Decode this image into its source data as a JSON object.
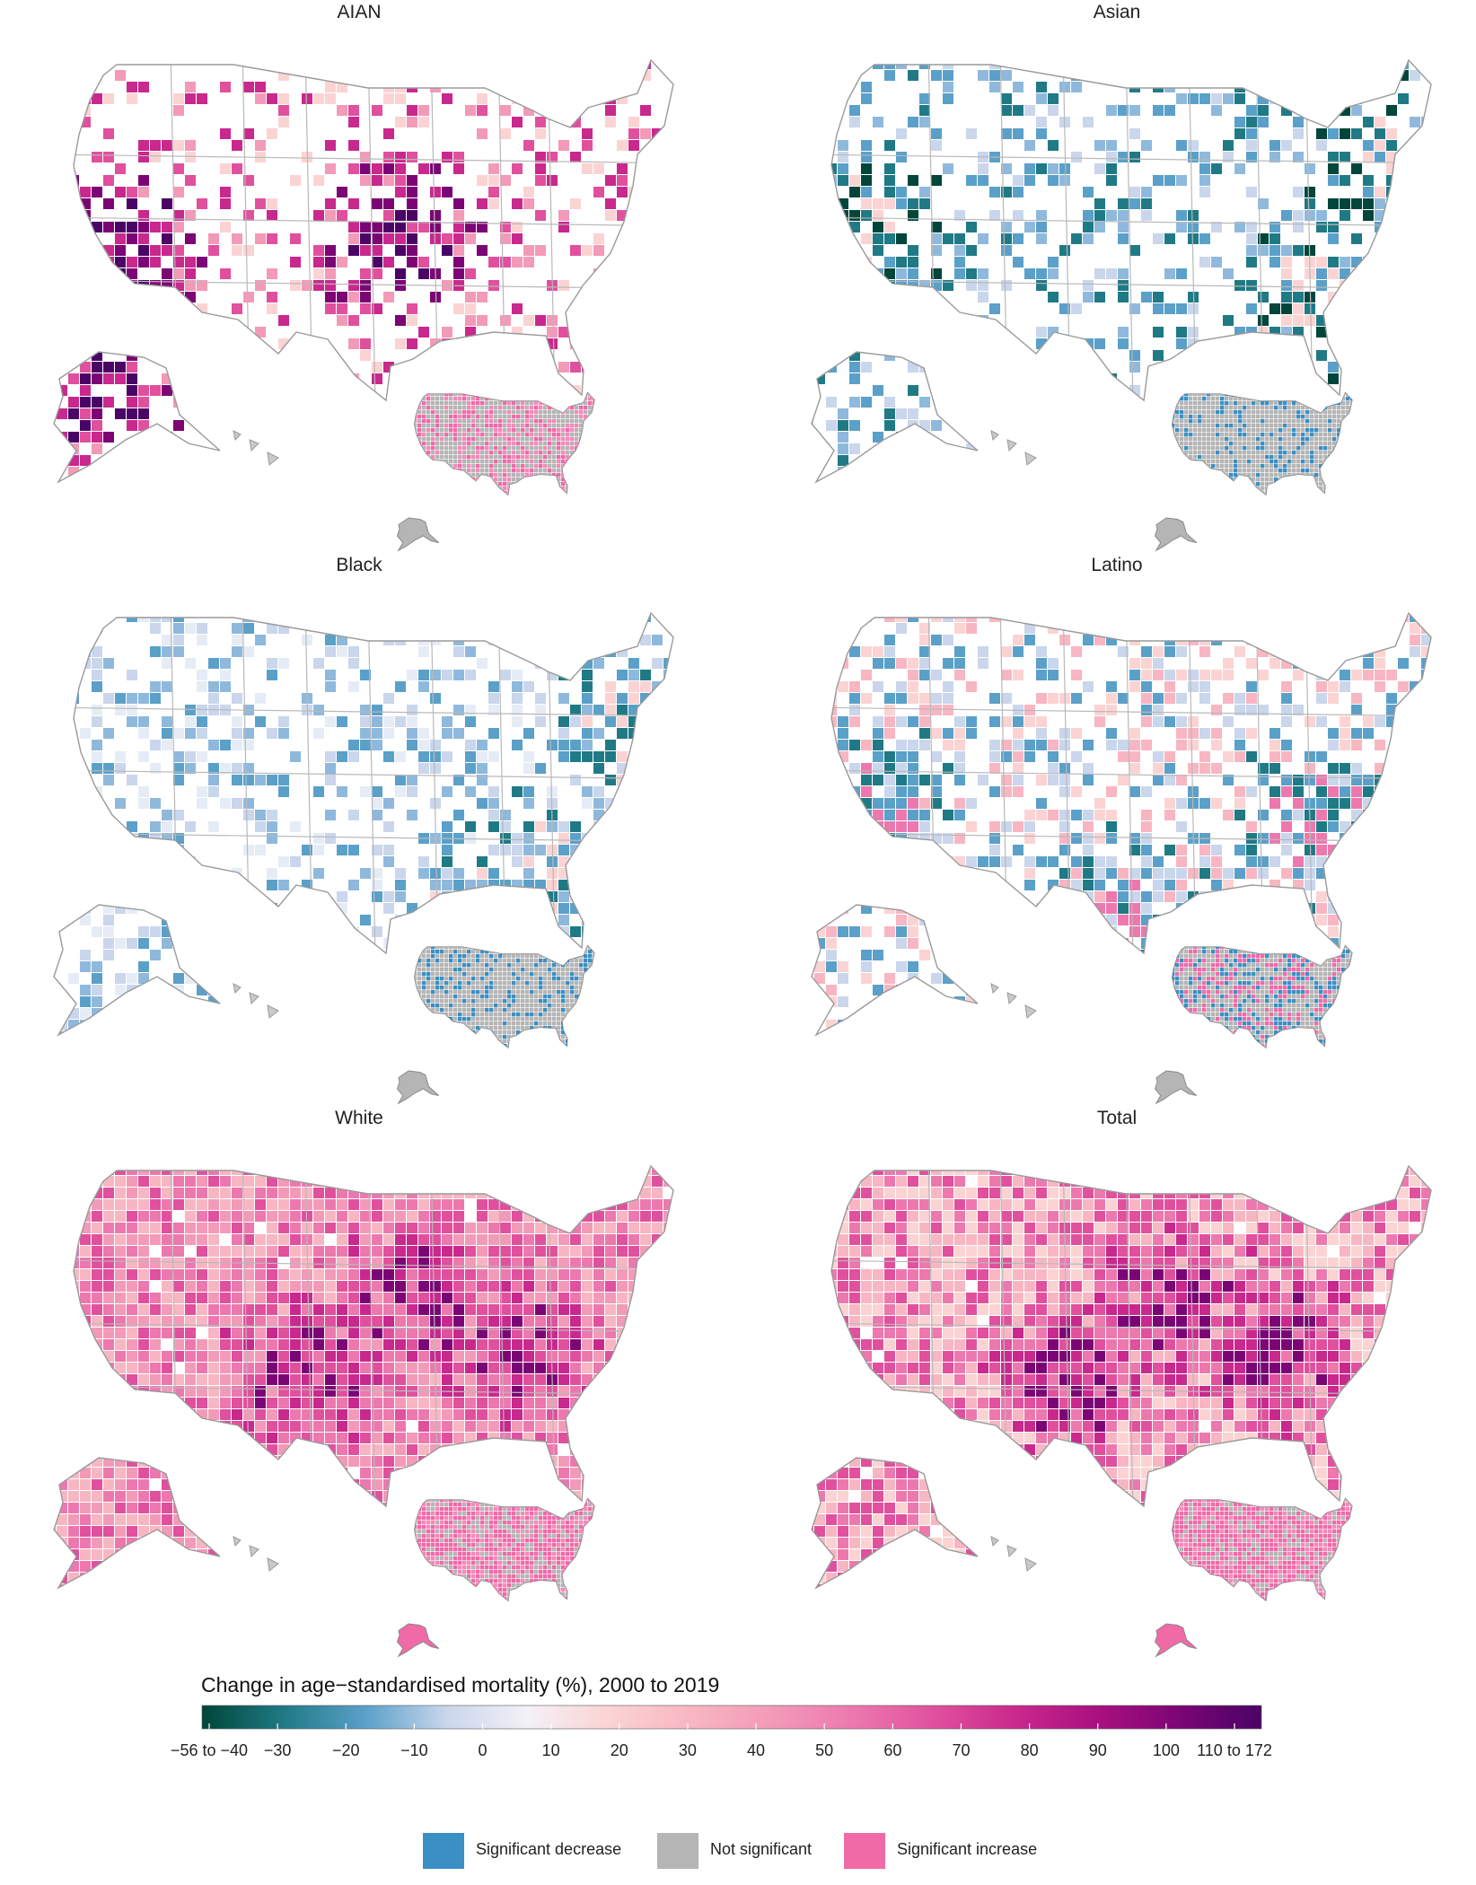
{
  "panels": [
    {
      "title": "AIAN",
      "scheme": "aian"
    },
    {
      "title": "Asian",
      "scheme": "asian"
    },
    {
      "title": "Black",
      "scheme": "black"
    },
    {
      "title": "Latino",
      "scheme": "latino"
    },
    {
      "title": "White",
      "scheme": "white"
    },
    {
      "title": "Total",
      "scheme": "total"
    }
  ],
  "legend": {
    "title": "Change in age−standardised mortality (%), 2000 to 2019",
    "ticks": [
      "−56 to −40",
      "−30",
      "−20",
      "−10",
      "0",
      "10",
      "20",
      "30",
      "40",
      "50",
      "60",
      "70",
      "80",
      "90",
      "100",
      "110 to 172"
    ],
    "colors": [
      "#00463a",
      "#1f7a85",
      "#5aa0c9",
      "#c9d6ec",
      "#f4f0f6",
      "#fbd3d3",
      "#f8b6c2",
      "#f39ab8",
      "#ec78ae",
      "#e0509d",
      "#c9288d",
      "#a9107f",
      "#7c0575",
      "#4a0466"
    ]
  },
  "significance": {
    "items": [
      {
        "label": "Significant decrease",
        "color": "#3a8fc4"
      },
      {
        "label": "Not significant",
        "color": "#b5b5b5"
      },
      {
        "label": "Significant increase",
        "color": "#f06aa8"
      }
    ]
  }
}
